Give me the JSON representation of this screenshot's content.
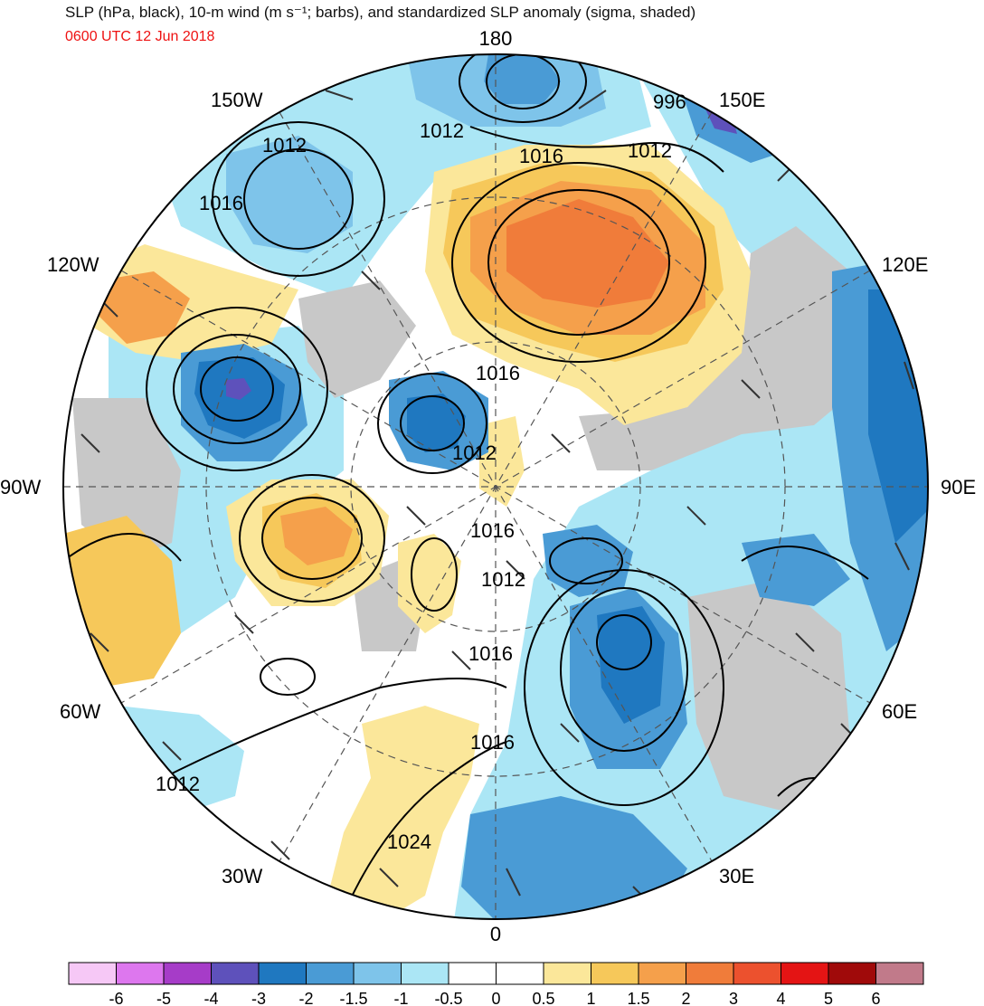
{
  "title": "SLP (hPa, black), 10-m wind (m s⁻¹; barbs), and standardized SLP anomaly (sigma, shaded)",
  "valid_time": "0600 UTC 12 Jun 2018",
  "longitude_labels": [
    "180",
    "150E",
    "120E",
    "90E",
    "60E",
    "30E",
    "0",
    "30W",
    "60W",
    "90W",
    "120W",
    "150W"
  ],
  "isobar_labels": [
    "996",
    "1012",
    "1012",
    "1016",
    "1012",
    "1016",
    "1016",
    "1012",
    "1016",
    "1012",
    "1016",
    "1016",
    "1024",
    "1012"
  ],
  "colorbar": {
    "ticks": [
      "-6",
      "-5",
      "-4",
      "-3",
      "-2",
      "-1.5",
      "-1",
      "-0.5",
      "0",
      "0.5",
      "1",
      "1.5",
      "2",
      "3",
      "4",
      "5",
      "6"
    ],
    "colors": [
      "#f6c8f6",
      "#dd77ee",
      "#a63cc8",
      "#5e51bb",
      "#1f78c0",
      "#4a9bd5",
      "#7ec4ea",
      "#abe6f5",
      "#ffffff",
      "#ffffff",
      "#fbe79a",
      "#f6c85a",
      "#f5a04b",
      "#f07c3a",
      "#ec512e",
      "#e41414",
      "#a00a0a",
      "#c17a8a"
    ]
  },
  "colors": {
    "land": "#c8c8c8",
    "neg_light": "#abe6f5",
    "neg_mid": "#7ec4ea",
    "neg_dark": "#4a9bd5",
    "neg_deep": "#1f78c0",
    "pos_light": "#fbe79a",
    "pos_mid": "#f6c85a",
    "pos_orange": "#f5a04b",
    "pos_deep": "#f07c3a"
  }
}
